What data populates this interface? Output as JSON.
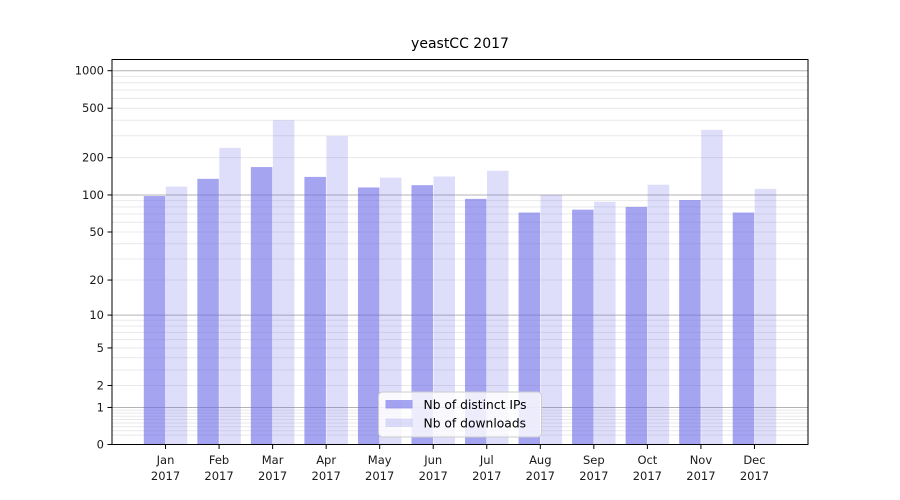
{
  "chart_data": {
    "type": "bar",
    "title": "yeastCC 2017",
    "xlabel": "",
    "ylabel": "",
    "yscale": "log1p",
    "ylim": [
      0,
      1230
    ],
    "categories": [
      "Jan",
      "Feb",
      "Mar",
      "Apr",
      "May",
      "Jun",
      "Jul",
      "Aug",
      "Sep",
      "Oct",
      "Nov",
      "Dec"
    ],
    "tick_year": "2017",
    "series": [
      {
        "name": "Nb of distinct IPs",
        "color": "rgba(104,104,232,0.60)",
        "values": [
          98,
          135,
          168,
          140,
          115,
          120,
          93,
          72,
          76,
          80,
          91,
          72
        ]
      },
      {
        "name": "Nb of downloads",
        "color": "rgba(104,104,232,0.22)",
        "values": [
          117,
          240,
          400,
          298,
          138,
          141,
          157,
          100,
          88,
          121,
          335,
          112
        ]
      }
    ],
    "yticks": [
      {
        "value": 0,
        "label": "0"
      },
      {
        "value": 1,
        "label": "1"
      },
      {
        "value": 2,
        "label": "2"
      },
      {
        "value": 5,
        "label": "5"
      },
      {
        "value": 10,
        "label": "10"
      },
      {
        "value": 20,
        "label": "20"
      },
      {
        "value": 50,
        "label": "50"
      },
      {
        "value": 100,
        "label": "100"
      },
      {
        "value": 200,
        "label": "200"
      },
      {
        "value": 500,
        "label": "500"
      },
      {
        "value": 1000,
        "label": "1000"
      }
    ],
    "grid": {
      "on": true,
      "major_values": [
        1,
        10,
        100,
        1000
      ],
      "minor_values": [
        0.2,
        0.3,
        0.4,
        0.5,
        0.6,
        0.7,
        0.8,
        0.9,
        2,
        3,
        4,
        5,
        6,
        7,
        8,
        9,
        20,
        30,
        40,
        50,
        60,
        70,
        80,
        90,
        200,
        300,
        400,
        500,
        600,
        700,
        800,
        900
      ],
      "major_color": "#b3b3b3",
      "minor_color": "#e9e9e9"
    },
    "legend": {
      "position": "lower-center",
      "background": "rgba(255,255,255,0.8)",
      "border_color": "#cccccc",
      "entries": [
        "Nb of distinct IPs",
        "Nb of downloads"
      ]
    },
    "axis_color": "#000000",
    "text_color": "#1a1a1a"
  }
}
